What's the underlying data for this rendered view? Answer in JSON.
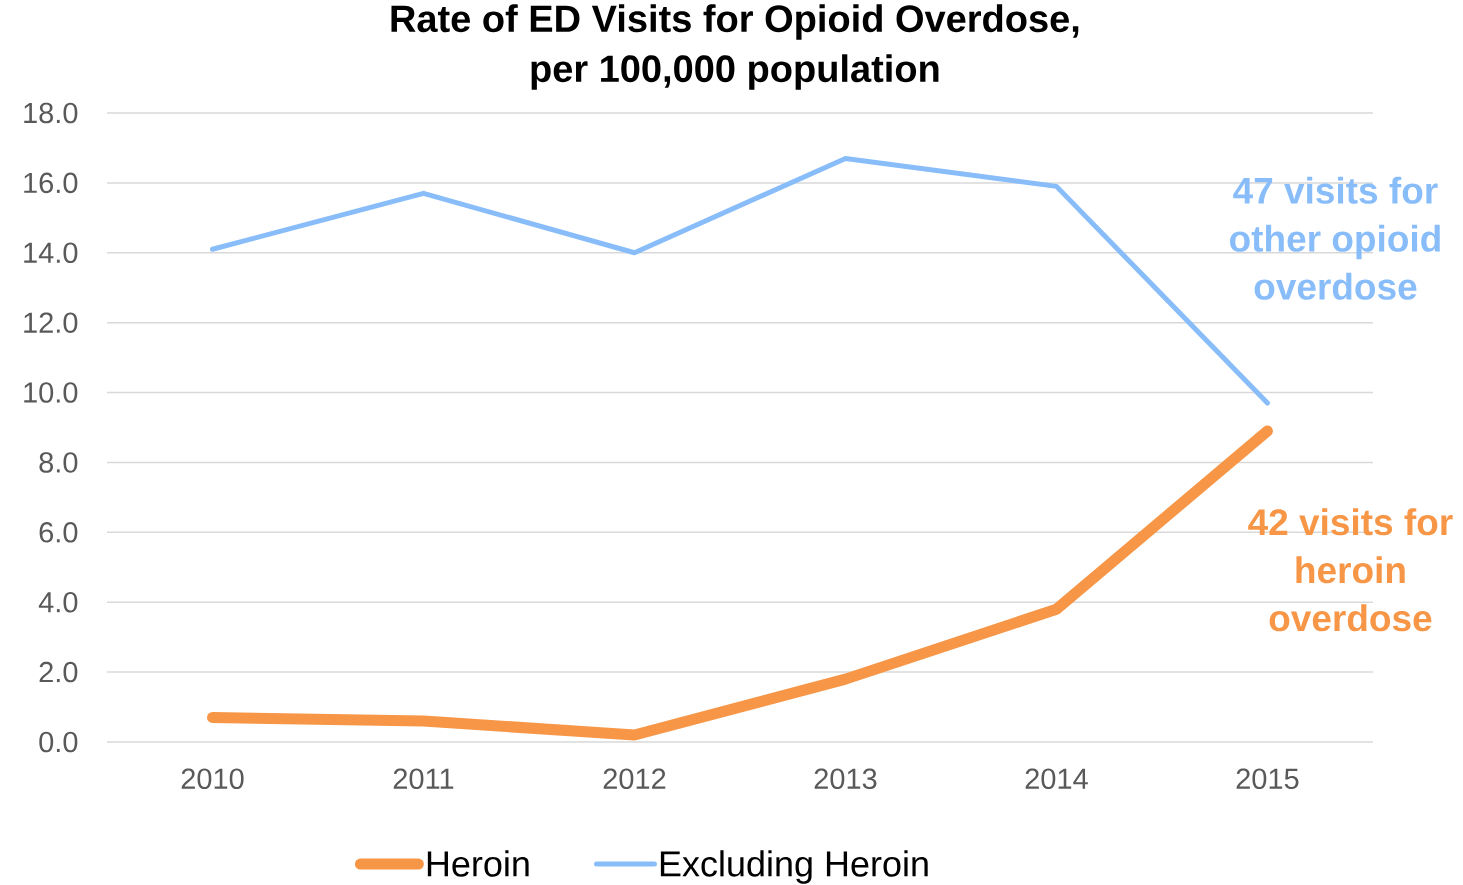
{
  "chart_data": {
    "type": "line",
    "title": "Rate of ED Visits for Opioid Overdose, per 100,000 population",
    "categories": [
      "2010",
      "2011",
      "2012",
      "2013",
      "2014",
      "2015"
    ],
    "series": [
      {
        "name": "Heroin",
        "color": "#f79646",
        "values": [
          0.7,
          0.6,
          0.2,
          1.8,
          3.8,
          8.9
        ]
      },
      {
        "name": "Excluding Heroin",
        "color": "#88bdfa",
        "values": [
          14.1,
          15.7,
          14.0,
          16.7,
          15.9,
          9.7
        ]
      }
    ],
    "ylim": [
      0,
      18
    ],
    "yticks": [
      {
        "value": 0,
        "label": "0.0"
      },
      {
        "value": 2,
        "label": "2.0"
      },
      {
        "value": 4,
        "label": "4.0"
      },
      {
        "value": 6,
        "label": "6.0"
      },
      {
        "value": 8,
        "label": "8.0"
      },
      {
        "value": 10,
        "label": "10.0"
      },
      {
        "value": 12,
        "label": "12.0"
      },
      {
        "value": 14,
        "label": "14.0"
      },
      {
        "value": 16,
        "label": "16.0"
      },
      {
        "value": 18,
        "label": "18.0"
      }
    ],
    "grid": "y",
    "legend": "bottom",
    "marker": "none",
    "line_style": "solid",
    "annotations": [
      "42 visits for heroin overdose",
      "47 visits for other opioid overdose"
    ]
  }
}
